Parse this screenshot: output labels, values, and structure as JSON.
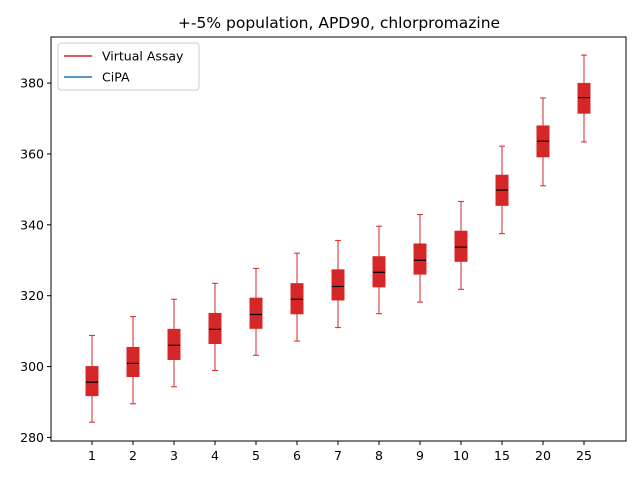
{
  "chart_data": {
    "type": "box",
    "title": "+-5% population, APD90, chlorpromazine",
    "xlabel": "",
    "ylabel": "",
    "categories": [
      "1",
      "2",
      "3",
      "4",
      "5",
      "6",
      "7",
      "8",
      "9",
      "10",
      "15",
      "20",
      "25"
    ],
    "ylim": [
      279,
      393
    ],
    "yticks": [
      280,
      300,
      320,
      340,
      360,
      380
    ],
    "grid": false,
    "legend_position": "top-left",
    "legend": [
      {
        "name": "Virtual Assay",
        "color": "#d62728"
      },
      {
        "name": "CiPA",
        "color": "#1f77b4"
      }
    ],
    "series": [
      {
        "name": "Virtual Assay",
        "color": "#d62728",
        "boxes": [
          {
            "whislo": 284.3,
            "q1": 291.8,
            "med": 295.6,
            "q3": 300.0,
            "whishi": 308.8
          },
          {
            "whislo": 289.5,
            "q1": 297.2,
            "med": 300.9,
            "q3": 305.4,
            "whishi": 314.1
          },
          {
            "whislo": 294.3,
            "q1": 302.0,
            "med": 306.0,
            "q3": 310.5,
            "whishi": 319.0
          },
          {
            "whislo": 298.9,
            "q1": 306.5,
            "med": 310.5,
            "q3": 315.0,
            "whishi": 323.5
          },
          {
            "whislo": 303.2,
            "q1": 310.8,
            "med": 314.7,
            "q3": 319.3,
            "whishi": 327.7
          },
          {
            "whislo": 307.2,
            "q1": 314.9,
            "med": 319.0,
            "q3": 323.4,
            "whishi": 332.0
          },
          {
            "whislo": 311.0,
            "q1": 318.8,
            "med": 322.6,
            "q3": 327.3,
            "whishi": 335.6
          },
          {
            "whislo": 314.9,
            "q1": 322.5,
            "med": 326.6,
            "q3": 331.0,
            "whishi": 339.6
          },
          {
            "whislo": 318.2,
            "q1": 326.1,
            "med": 330.0,
            "q3": 334.6,
            "whishi": 342.9
          },
          {
            "whislo": 321.8,
            "q1": 329.7,
            "med": 333.7,
            "q3": 338.2,
            "whishi": 346.6
          },
          {
            "whislo": 337.5,
            "q1": 345.5,
            "med": 349.8,
            "q3": 354.0,
            "whishi": 362.2
          },
          {
            "whislo": 351.0,
            "q1": 359.2,
            "med": 363.6,
            "q3": 367.9,
            "whishi": 375.8
          },
          {
            "whislo": 363.4,
            "q1": 371.5,
            "med": 375.9,
            "q3": 379.9,
            "whishi": 387.9
          }
        ]
      },
      {
        "name": "CiPA",
        "color": "#1f77b4",
        "boxes": []
      }
    ],
    "median_color": "#000000"
  }
}
